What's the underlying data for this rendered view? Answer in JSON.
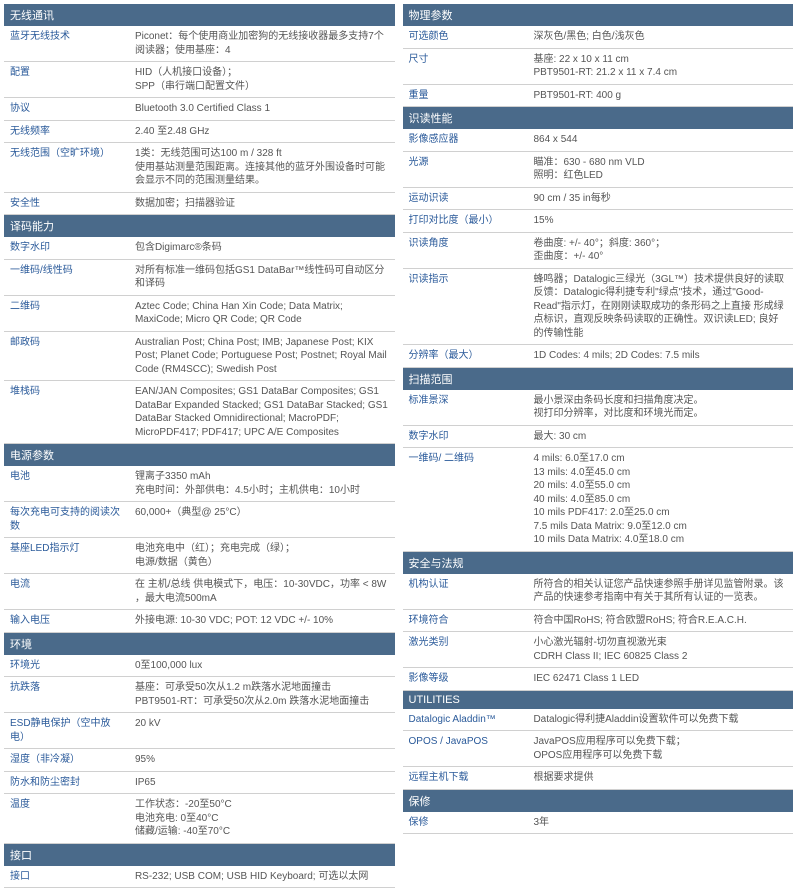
{
  "left": [
    {
      "title": "无线通讯",
      "rows": [
        {
          "label": "蓝牙无线技术",
          "value": "Piconet：每个使用商业加密狗的无线接收器最多支持7个阅读器；使用基座：4"
        },
        {
          "label": "配置",
          "value": "HID（人机接口设备）；\nSPP（串行端口配置文件）"
        },
        {
          "label": "协议",
          "value": "Bluetooth 3.0 Certified Class 1"
        },
        {
          "label": "无线频率",
          "value": "2.40 至2.48 GHz"
        },
        {
          "label": "无线范围（空旷环境）",
          "value": "1类：无线范围可达100 m / 328 ft\n使用基站测量范围距离。连接其他的蓝牙外围设备时可能会显示不同的范围测量结果。"
        },
        {
          "label": "安全性",
          "value": "数据加密；扫描器验证"
        }
      ]
    },
    {
      "title": "译码能力",
      "rows": [
        {
          "label": "数字水印",
          "value": "包含Digimarc®条码"
        },
        {
          "label": "一维码/线性码",
          "value": "对所有标准一维码包括GS1 DataBar™线性码可自动区分和译码"
        },
        {
          "label": "二维码",
          "value": "Aztec Code; China Han Xin Code; Data Matrix; MaxiCode; Micro QR Code; QR Code"
        },
        {
          "label": "邮政码",
          "value": "Australian Post; China Post; IMB; Japanese Post; KIX Post; Planet Code; Portuguese Post; Postnet; Royal Mail Code (RM4SCC); Swedish Post"
        },
        {
          "label": "堆栈码",
          "value": "EAN/JAN Composites; GS1 DataBar Composites; GS1 DataBar Expanded Stacked; GS1 DataBar Stacked; GS1 DataBar Stacked Omnidirectional; MacroPDF; MicroPDF417; PDF417; UPC A/E Composites"
        }
      ]
    },
    {
      "title": "电源参数",
      "rows": [
        {
          "label": "电池",
          "value": "锂离子3350 mAh\n充电时间：外部供电：4.5小时；主机供电：10小时"
        },
        {
          "label": "每次充电可支持的阅读次数",
          "value": "60,000+（典型@ 25°C）"
        },
        {
          "label": "基座LED指示灯",
          "value": "电池充电中（红）；充电完成（绿）；\n电源/数据（黄色）"
        },
        {
          "label": "电流",
          "value": "在 主机/总线 供电模式下，电压：10-30VDC，功率 < 8W ，最大电流500mA"
        },
        {
          "label": "输入电压",
          "value": "外接电源: 10-30 VDC; POT: 12 VDC +/- 10%"
        }
      ]
    },
    {
      "title": "环境",
      "rows": [
        {
          "label": "环境光",
          "value": "0至100,000 lux"
        },
        {
          "label": "抗跌落",
          "value": "基座：可承受50次从1.2 m跌落水泥地面撞击\nPBT9501-RT：可承受50次从2.0m 跌落水泥地面撞击"
        },
        {
          "label": "ESD静电保护（空中放电）",
          "value": "20 kV"
        },
        {
          "label": "湿度（非冷凝）",
          "value": "95%"
        },
        {
          "label": "防水和防尘密封",
          "value": "IP65"
        },
        {
          "label": "温度",
          "value": "工作状态：-20至50°C\n电池充电: 0至40°C\n储藏/运输: -40至70°C"
        }
      ]
    },
    {
      "title": "接口",
      "rows": [
        {
          "label": "接口",
          "value": "RS-232; USB COM; USB HID Keyboard; 可选以太网"
        }
      ]
    }
  ],
  "right": [
    {
      "title": "物理参数",
      "rows": [
        {
          "label": "可选颜色",
          "value": "深灰色/黑色; 白色/浅灰色"
        },
        {
          "label": "尺寸",
          "value": "基座: 22 x 10 x 11 cm\nPBT9501-RT: 21.2 x 11 x 7.4 cm"
        },
        {
          "label": "重量",
          "value": "PBT9501-RT: 400 g"
        }
      ]
    },
    {
      "title": "识读性能",
      "rows": [
        {
          "label": "影像感应器",
          "value": "864 x 544"
        },
        {
          "label": "光源",
          "value": "瞄准：630 - 680 nm VLD\n照明：红色LED"
        },
        {
          "label": "运动识读",
          "value": "90 cm / 35 in每秒"
        },
        {
          "label": "打印对比度（最小）",
          "value": "15%"
        },
        {
          "label": "识读角度",
          "value": "卷曲度: +/- 40°；斜度: 360°；\n歪曲度：+/- 40°"
        },
        {
          "label": "识读指示",
          "value": "蜂鸣器；Datalogic三绿光（3GL™）技术提供良好的读取反馈：Datalogic得利捷专利\"绿点\"技术，通过\"Good-Read\"指示灯，在刚刚读取成功的条形码之上直接 形成绿点标识，直观反映条码读取的正确性。双识读LED; 良好的传输性能"
        },
        {
          "label": "分辨率（最大）",
          "value": "1D Codes: 4 mils; 2D Codes: 7.5 mils"
        }
      ]
    },
    {
      "title": "扫描范围",
      "rows": [
        {
          "label": "标准景深",
          "value": "最小景深由条码长度和扫描角度决定。\n视打印分辨率，对比度和环境光而定。"
        },
        {
          "label": "数字水印",
          "value": "最大: 30 cm"
        },
        {
          "label": "一维码/ 二维码",
          "value": "  4 mils: 6.0至17.0 cm\n13 mils: 4.0至45.0 cm\n20 mils: 4.0至55.0 cm\n40 mils: 4.0至85.0 cm\n10 mils PDF417: 2.0至25.0 cm\n  7.5 mils Data Matrix: 9.0至12.0 cm\n10 mils Data Matrix: 4.0至18.0 cm"
        }
      ]
    },
    {
      "title": "安全与法规",
      "rows": [
        {
          "label": "机构认证",
          "value": "所符合的相关认证您产品快速参照手册详见监管附录。该产品的快速参考指南中有关于其所有认证的一览表。"
        },
        {
          "label": "环境符合",
          "value": "符合中国RoHS; 符合欧盟RoHS; 符合R.E.A.C.H."
        },
        {
          "label": "激光类别",
          "value": "小心激光辐射-切勿直视激光束\nCDRH Class II; IEC 60825 Class 2"
        },
        {
          "label": "影像等级",
          "value": "IEC 62471 Class 1 LED"
        }
      ]
    },
    {
      "title": "UTILITIES",
      "rows": [
        {
          "label": "Datalogic Aladdin™",
          "value": "Datalogic得利捷Aladdin设置软件可以免费下载"
        },
        {
          "label": "OPOS / JavaPOS",
          "value": "JavaPOS应用程序可以免费下载；\nOPOS应用程序可以免费下载"
        },
        {
          "label": "远程主机下载",
          "value": "根据要求提供"
        }
      ]
    },
    {
      "title": "保修",
      "rows": [
        {
          "label": "保修",
          "value": "3年"
        }
      ]
    }
  ]
}
